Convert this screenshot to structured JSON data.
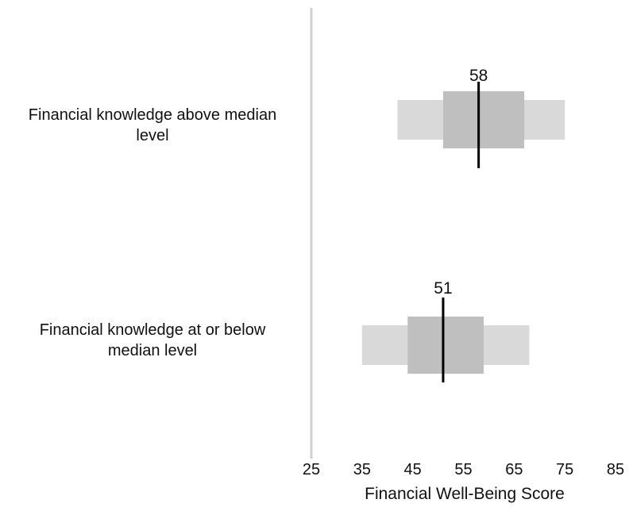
{
  "chart_data": {
    "type": "range-bar",
    "xlabel": "Financial Well-Being Score",
    "xlim": [
      25,
      85
    ],
    "xticks": [
      "25",
      "35",
      "45",
      "55",
      "65",
      "75",
      "85"
    ],
    "categories": [
      {
        "label_lines": [
          "Financial knowledge above median",
          "level"
        ],
        "outer_range": [
          42,
          75
        ],
        "inner_range": [
          51,
          67
        ],
        "median": 58,
        "median_label": "58"
      },
      {
        "label_lines": [
          "Financial knowledge at or below",
          "median level"
        ],
        "outer_range": [
          35,
          68
        ],
        "inner_range": [
          44,
          59
        ],
        "median": 51,
        "median_label": "51"
      }
    ],
    "colors": {
      "outer_band": "#d9d9d9",
      "inner_band": "#bfbfbf",
      "median_line": "#000000",
      "axis_line": "#d0d0d0"
    },
    "grid": false,
    "legend": "none"
  }
}
